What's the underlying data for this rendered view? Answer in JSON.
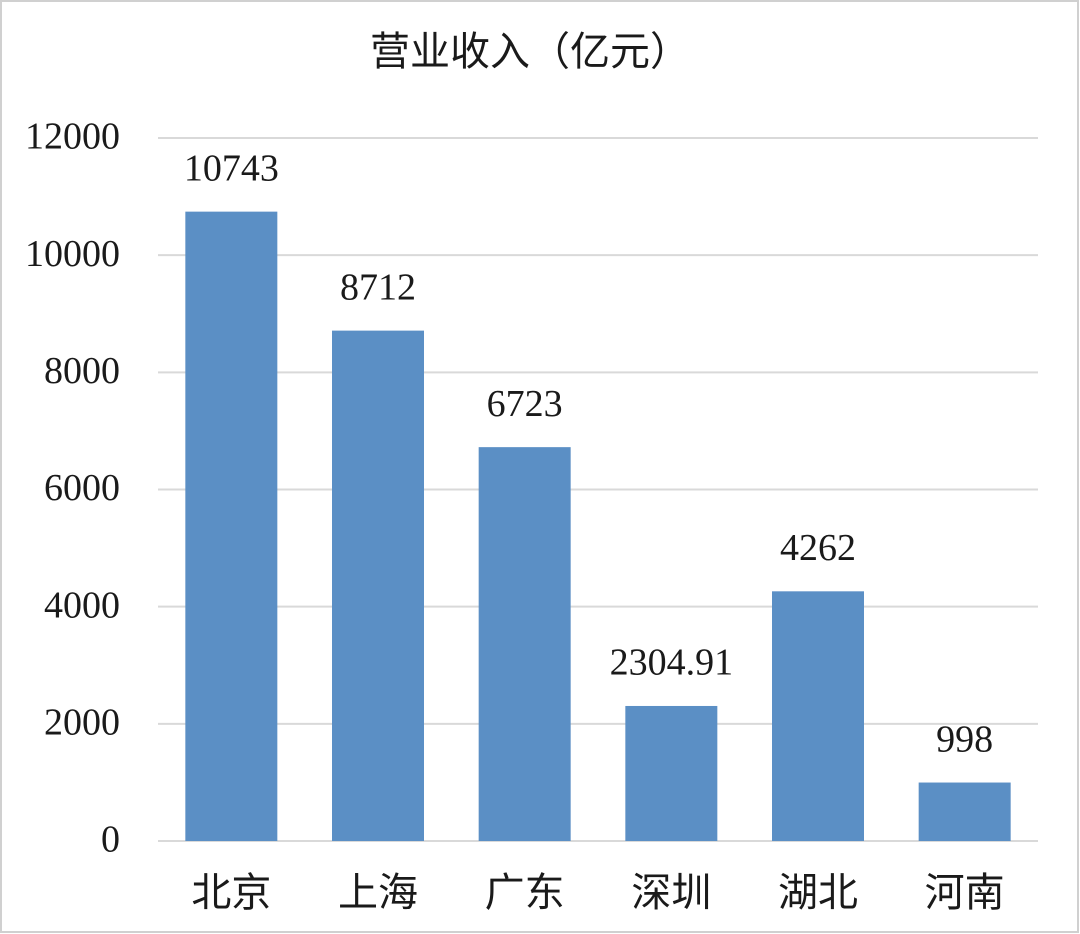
{
  "chart_data": {
    "type": "bar",
    "title": "营业收入（亿元）",
    "categories": [
      "北京",
      "上海",
      "广东",
      "深圳",
      "湖北",
      "河南"
    ],
    "values": [
      10743,
      8712,
      6723,
      2304.91,
      4262,
      998
    ],
    "color": "#5b8fc5",
    "ylim": [
      0,
      12000
    ],
    "yticks": [
      0,
      2000,
      4000,
      6000,
      8000,
      10000,
      12000
    ],
    "grid": true
  }
}
